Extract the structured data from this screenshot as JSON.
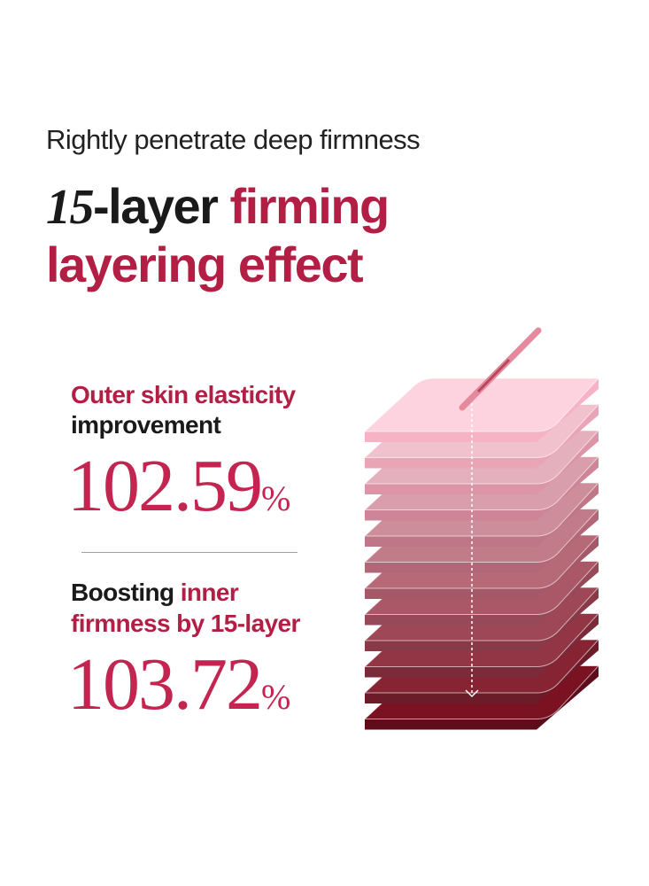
{
  "header": {
    "subtitle": "Rightly penetrate deep firmness",
    "title_number": "15",
    "title_part1": "-layer",
    "title_part2": "firming",
    "title_line2": "layering effect"
  },
  "stats": [
    {
      "label_red": "Outer skin elasticity",
      "label_black": "improvement",
      "value": "102.59",
      "unit": "%"
    },
    {
      "label_black": "Boosting",
      "label_red": "inner",
      "label_line2": "firmness by 15-layer",
      "value": "103.72",
      "unit": "%"
    }
  ]
}
